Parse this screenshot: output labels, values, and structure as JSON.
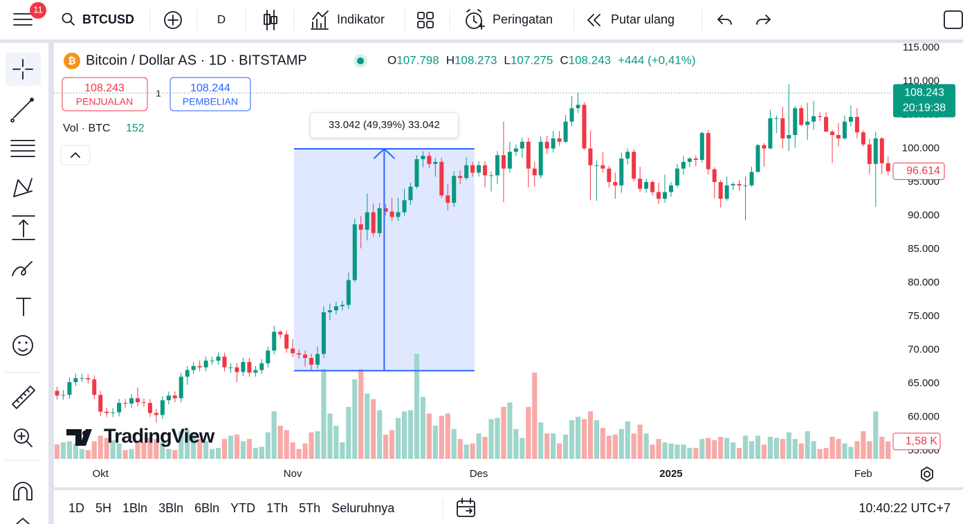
{
  "toolbar": {
    "notifications": "11",
    "symbol": "BTCUSD",
    "interval": "D",
    "indicators": "Indikator",
    "alerts": "Peringatan",
    "replay": "Putar ulang"
  },
  "legend": {
    "title": "Bitcoin / Dollar AS · 1D · BITSTAMP",
    "ohlc": [
      {
        "key": "O",
        "value": "107.798"
      },
      {
        "key": "H",
        "value": "108.273"
      },
      {
        "key": "L",
        "value": "107.275"
      },
      {
        "key": "C",
        "value": "108.243"
      }
    ],
    "change": "+444 (+0,41%)",
    "sell_price": "108.243",
    "sell_label": "PENJUALAN",
    "spread": "1",
    "buy_price": "108.244",
    "buy_label": "PEMBELIAN",
    "volume_label": "Vol · BTC",
    "volume_value": "152"
  },
  "chart": {
    "type": "candlestick",
    "xlim": [
      -0.5,
      134.7
    ],
    "ylim": [
      53760,
      115720
    ],
    "xticks": [
      {
        "value": 7,
        "label": "Okt"
      },
      {
        "value": 38,
        "label": "Nov"
      },
      {
        "value": 68,
        "label": "Des"
      },
      {
        "value": 99,
        "label": "2025"
      },
      {
        "value": 130,
        "label": "Feb"
      }
    ],
    "yticks": [
      {
        "value": 115000,
        "label": "115.000"
      },
      {
        "value": 110000,
        "label": "110.000"
      },
      {
        "value": 105000,
        "label": "105.000"
      },
      {
        "value": 100000,
        "label": "100.000"
      },
      {
        "value": 95000,
        "label": "95.000"
      },
      {
        "value": 90000,
        "label": "90.000"
      },
      {
        "value": 85000,
        "label": "85.000"
      },
      {
        "value": 80000,
        "label": "80.000"
      },
      {
        "value": 75000,
        "label": "75.000"
      },
      {
        "value": 70000,
        "label": "70.000"
      },
      {
        "value": 65000,
        "label": "65.000"
      },
      {
        "value": 60000,
        "label": "60.000"
      },
      {
        "value": 55000,
        "label": "55.000"
      }
    ],
    "up_color": "#089981",
    "down_color": "#f23645",
    "volume_up_color": "#9fd6cc",
    "volume_down_color": "#f7aaa8",
    "candles": [
      [
        63900,
        64500,
        62600,
        63200
      ],
      [
        63200,
        64000,
        62600,
        63300
      ],
      [
        63300,
        65900,
        62700,
        65200
      ],
      [
        65200,
        66500,
        64600,
        65800
      ],
      [
        65800,
        66400,
        65200,
        65800
      ],
      [
        65800,
        66400,
        65000,
        65600
      ],
      [
        65600,
        66200,
        62700,
        63300
      ],
      [
        63300,
        63900,
        60200,
        60800
      ],
      [
        60800,
        61400,
        60000,
        60600
      ],
      [
        60600,
        61300,
        60000,
        60700
      ],
      [
        60700,
        62700,
        60100,
        62100
      ],
      [
        62100,
        62700,
        61400,
        62000
      ],
      [
        62000,
        63400,
        61400,
        62800
      ],
      [
        62800,
        64400,
        61600,
        62200
      ],
      [
        62200,
        62800,
        61500,
        62100
      ],
      [
        62100,
        62700,
        60000,
        60600
      ],
      [
        60600,
        61200,
        59200,
        60300
      ],
      [
        60300,
        63100,
        59700,
        62500
      ],
      [
        62500,
        63800,
        61900,
        63200
      ],
      [
        63200,
        63800,
        62200,
        62800
      ],
      [
        62800,
        66600,
        62200,
        66000
      ],
      [
        66000,
        67600,
        64800,
        67000
      ],
      [
        67000,
        68200,
        66400,
        67600
      ],
      [
        67600,
        68400,
        66800,
        67400
      ],
      [
        67400,
        69000,
        66800,
        68400
      ],
      [
        68400,
        69000,
        67800,
        68400
      ],
      [
        68400,
        69600,
        67800,
        69000
      ],
      [
        69000,
        69600,
        66800,
        67400
      ],
      [
        67400,
        68000,
        66600,
        67400
      ],
      [
        67400,
        68000,
        65200,
        66700
      ],
      [
        66700,
        68800,
        66100,
        68200
      ],
      [
        68200,
        68800,
        66000,
        66600
      ],
      [
        66600,
        67600,
        66000,
        67000
      ],
      [
        67000,
        68600,
        66400,
        68000
      ],
      [
        68000,
        70500,
        67400,
        69900
      ],
      [
        69900,
        73600,
        69300,
        72700
      ],
      [
        72700,
        72900,
        71700,
        72300
      ],
      [
        72300,
        72900,
        69600,
        70200
      ],
      [
        70200,
        71600,
        68900,
        69500
      ],
      [
        69500,
        70100,
        68700,
        69300
      ],
      [
        69300,
        69900,
        67500,
        68800
      ],
      [
        68800,
        69400,
        66800,
        67800
      ],
      [
        67800,
        70500,
        67200,
        69400
      ],
      [
        69400,
        76500,
        68800,
        75600
      ],
      [
        75600,
        76900,
        74400,
        75900
      ],
      [
        75900,
        77200,
        75300,
        76500
      ],
      [
        76500,
        77300,
        75900,
        76700
      ],
      [
        76700,
        81500,
        76100,
        80400
      ],
      [
        80400,
        89600,
        80100,
        88700
      ],
      [
        88700,
        89900,
        85100,
        87900
      ],
      [
        87900,
        93300,
        86300,
        90500
      ],
      [
        90500,
        91800,
        86800,
        87400
      ],
      [
        87400,
        91900,
        86800,
        91100
      ],
      [
        91100,
        91700,
        90000,
        90600
      ],
      [
        90600,
        92600,
        89200,
        89800
      ],
      [
        89800,
        92600,
        89200,
        90500
      ],
      [
        90500,
        94000,
        90000,
        92300
      ],
      [
        92300,
        94900,
        91600,
        94300
      ],
      [
        94300,
        99000,
        94000,
        98400
      ],
      [
        98400,
        99600,
        97200,
        98900
      ],
      [
        98900,
        99500,
        97100,
        97700
      ],
      [
        97700,
        98600,
        95800,
        98000
      ],
      [
        98000,
        98600,
        92600,
        93000
      ],
      [
        93000,
        94700,
        90800,
        91900
      ],
      [
        91900,
        96600,
        91300,
        95900
      ],
      [
        95900,
        96700,
        94700,
        95600
      ],
      [
        95600,
        98700,
        95300,
        97500
      ],
      [
        97500,
        98000,
        95800,
        96400
      ],
      [
        96400,
        98100,
        95800,
        97500
      ],
      [
        97500,
        98100,
        94200,
        96000
      ],
      [
        96000,
        96600,
        93600,
        96000
      ],
      [
        96000,
        99600,
        94700,
        99000
      ],
      [
        99000,
        104000,
        92000,
        97000
      ],
      [
        97000,
        101000,
        96400,
        99500
      ],
      [
        99500,
        100600,
        98900,
        100000
      ],
      [
        100000,
        101600,
        98600,
        101000
      ],
      [
        101000,
        101600,
        94200,
        97000
      ],
      [
        97000,
        98000,
        94300,
        96000
      ],
      [
        96000,
        101800,
        95600,
        101000
      ],
      [
        101000,
        101900,
        99200,
        100000
      ],
      [
        100000,
        102600,
        99400,
        101500
      ],
      [
        101500,
        102600,
        100400,
        101000
      ],
      [
        101000,
        105000,
        100800,
        104000
      ],
      [
        104000,
        107800,
        103300,
        106000
      ],
      [
        106000,
        108300,
        105300,
        106500
      ],
      [
        106500,
        106900,
        99800,
        100000
      ],
      [
        100000,
        102700,
        92300,
        97500
      ],
      [
        97500,
        98200,
        92200,
        97500
      ],
      [
        97500,
        99500,
        96400,
        97000
      ],
      [
        97000,
        97400,
        94200,
        95000
      ],
      [
        95000,
        96400,
        92500,
        94500
      ],
      [
        94500,
        99400,
        93400,
        98500
      ],
      [
        98500,
        100000,
        97600,
        99500
      ],
      [
        99500,
        99900,
        95100,
        95500
      ],
      [
        95500,
        97300,
        93500,
        94000
      ],
      [
        94000,
        95500,
        93400,
        95000
      ],
      [
        95000,
        95300,
        93000,
        93500
      ],
      [
        93500,
        94900,
        91700,
        92500
      ],
      [
        92500,
        96100,
        91900,
        93500
      ],
      [
        93500,
        95000,
        92800,
        94500
      ],
      [
        94500,
        97700,
        94200,
        97000
      ],
      [
        97000,
        98900,
        96100,
        98000
      ],
      [
        98000,
        98700,
        97200,
        98500
      ],
      [
        98500,
        99000,
        97300,
        98300
      ],
      [
        98300,
        102500,
        97900,
        102300
      ],
      [
        102300,
        102700,
        96100,
        96900
      ],
      [
        96900,
        97200,
        92600,
        95000
      ],
      [
        95000,
        95300,
        91200,
        92500
      ],
      [
        92500,
        95800,
        92200,
        94500
      ],
      [
        94500,
        95000,
        93800,
        94700
      ],
      [
        94700,
        95300,
        93700,
        94500
      ],
      [
        94500,
        95800,
        89300,
        94500
      ],
      [
        94500,
        97300,
        94300,
        96500
      ],
      [
        96500,
        100700,
        96500,
        100500
      ],
      [
        100500,
        100800,
        97300,
        100000
      ],
      [
        100000,
        105800,
        99900,
        104500
      ],
      [
        104500,
        104900,
        102300,
        104500
      ],
      [
        104500,
        106200,
        100000,
        101500
      ],
      [
        101500,
        109600,
        99600,
        102000
      ],
      [
        102000,
        106300,
        100100,
        106000
      ],
      [
        106000,
        106400,
        103300,
        103500
      ],
      [
        103500,
        106800,
        101300,
        104000
      ],
      [
        104000,
        107100,
        102800,
        104800
      ],
      [
        104800,
        105400,
        104100,
        104700
      ],
      [
        104700,
        105400,
        102500,
        102500
      ],
      [
        102500,
        102800,
        97800,
        102000
      ],
      [
        102000,
        103800,
        100300,
        101500
      ],
      [
        101500,
        104900,
        101300,
        104000
      ],
      [
        104000,
        106400,
        103300,
        104700
      ],
      [
        104700,
        106000,
        101500,
        102400
      ],
      [
        102400,
        102700,
        100300,
        100600
      ],
      [
        100600,
        101400,
        96200,
        97700
      ],
      [
        97700,
        102500,
        91300,
        101500
      ],
      [
        101500,
        101700,
        96200,
        97800
      ],
      [
        97800,
        98800,
        96000,
        96600
      ]
    ],
    "volume_ylim": [
      0,
      10
    ],
    "volume": [
      1.3,
      1.5,
      1.6,
      1.4,
      0.9,
      0.8,
      1.6,
      2.1,
      1.9,
      1.7,
      1.4,
      0.8,
      0.9,
      1.6,
      1.5,
      1.9,
      1.8,
      1.5,
      0.9,
      0.8,
      2.5,
      2.6,
      2.3,
      1.8,
      1.6,
      0.9,
      1.0,
      1.8,
      2.1,
      2.2,
      1.6,
      1.8,
      1.0,
      1.1,
      2.4,
      4.3,
      3.0,
      2.6,
      1.5,
      0.9,
      1.4,
      2.4,
      2.5,
      8.1,
      4.1,
      3.0,
      1.5,
      4.7,
      7.2,
      8.1,
      5.9,
      5.4,
      4.4,
      2.2,
      2.6,
      3.7,
      4.3,
      4.4,
      9.5,
      5.6,
      4.1,
      3.0,
      3.9,
      4.1,
      2.7,
      1.8,
      1.3,
      1.4,
      2.3,
      2.0,
      3.6,
      3.7,
      4.7,
      5.1,
      2.7,
      1.9,
      4.7,
      7.8,
      3.3,
      2.3,
      2.3,
      1.4,
      2.2,
      3.5,
      3.8,
      3.6,
      4.3,
      3.5,
      2.8,
      2.1,
      2.2,
      2.7,
      3.4,
      2.3,
      3.1,
      2.3,
      1.3,
      1.8,
      1.5,
      1.4,
      1.3,
      1.3,
      1.0,
      1.0,
      1.8,
      1.9,
      1.7,
      2.0,
      1.9,
      1.5,
      1.0,
      2.1,
      1.6,
      2.1,
      1.3,
      2.0,
      1.9,
      1.8,
      2.4,
      1.8,
      1.4,
      2.5,
      1.6,
      0.9,
      1.0,
      2.0,
      1.8,
      1.4,
      1.1,
      1.6,
      2.5,
      1.6,
      4.3,
      2.0,
      1.58
    ],
    "price_line": {
      "value": 108243,
      "label": "108.243",
      "countdown": "20:19:38"
    },
    "last_price": {
      "value": 96614,
      "label": "96.614"
    },
    "volume_tag": {
      "value": 1.58,
      "label": "1,58 K"
    },
    "measure": {
      "x": [
        38.2,
        67.3
      ],
      "low": 66900,
      "high": 99942,
      "label": "33.042 (49,39%) 33.042"
    }
  },
  "watermark": "TradingView",
  "bottom": {
    "ranges": [
      "1D",
      "5H",
      "1Bln",
      "3Bln",
      "6Bln",
      "YTD",
      "1Th",
      "5Th",
      "Seluruhnya"
    ],
    "clock": "10:40:22 UTC+7"
  }
}
